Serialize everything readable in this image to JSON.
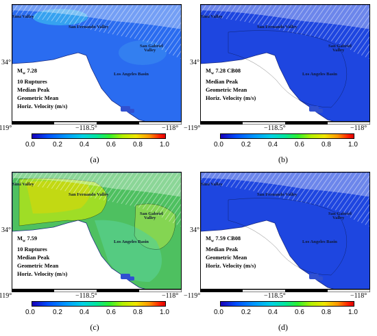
{
  "axes": {
    "lon_ticks": [
      "−119°",
      "−118.5°",
      "−118°"
    ],
    "lat_tick": "34°"
  },
  "colorbar": {
    "ticks": [
      "0.0",
      "0.2",
      "0.4",
      "0.6",
      "0.8",
      "1.0"
    ],
    "range": [
      0.0,
      1.0
    ],
    "colors": [
      "#1a00b8",
      "#0096ff",
      "#00e6a0",
      "#b4f000",
      "#ff9600",
      "#e00000"
    ]
  },
  "places": {
    "simi": "Simi Valley",
    "sfv": "San Fernando Valley",
    "sg1": "San Gabriel",
    "sg2": "Valley",
    "la": "Los Angeles Basin"
  },
  "panels": [
    {
      "label": "(a)",
      "legend": {
        "mag": "7.28",
        "suffix": "",
        "line2": "10 Ruptures",
        "line3": "Median Peak",
        "line4": "Geometric Mean",
        "line5": "Horiz. Velocity (m/s)"
      },
      "field_level": 0.25
    },
    {
      "label": "(b)",
      "legend": {
        "mag": "7.28",
        "suffix": "CB08",
        "line2": "Median Peak",
        "line3": "Geometric Mean",
        "line4": "Horiz. Velocity (m/s)",
        "line5": ""
      },
      "field_level": 0.1
    },
    {
      "label": "(c)",
      "legend": {
        "mag": "7.59",
        "suffix": "",
        "line2": "10 Ruptures",
        "line3": "Median Peak",
        "line4": "Geometric Mean",
        "line5": "Horiz. Velocity (m/s)"
      },
      "field_level": 0.5
    },
    {
      "label": "(d)",
      "legend": {
        "mag": "7.59",
        "suffix": "CB08",
        "line2": "Median Peak",
        "line3": "Geometric Mean",
        "line4": "Horiz. Velocity (m/s)",
        "line5": ""
      },
      "field_level": 0.15
    }
  ]
}
